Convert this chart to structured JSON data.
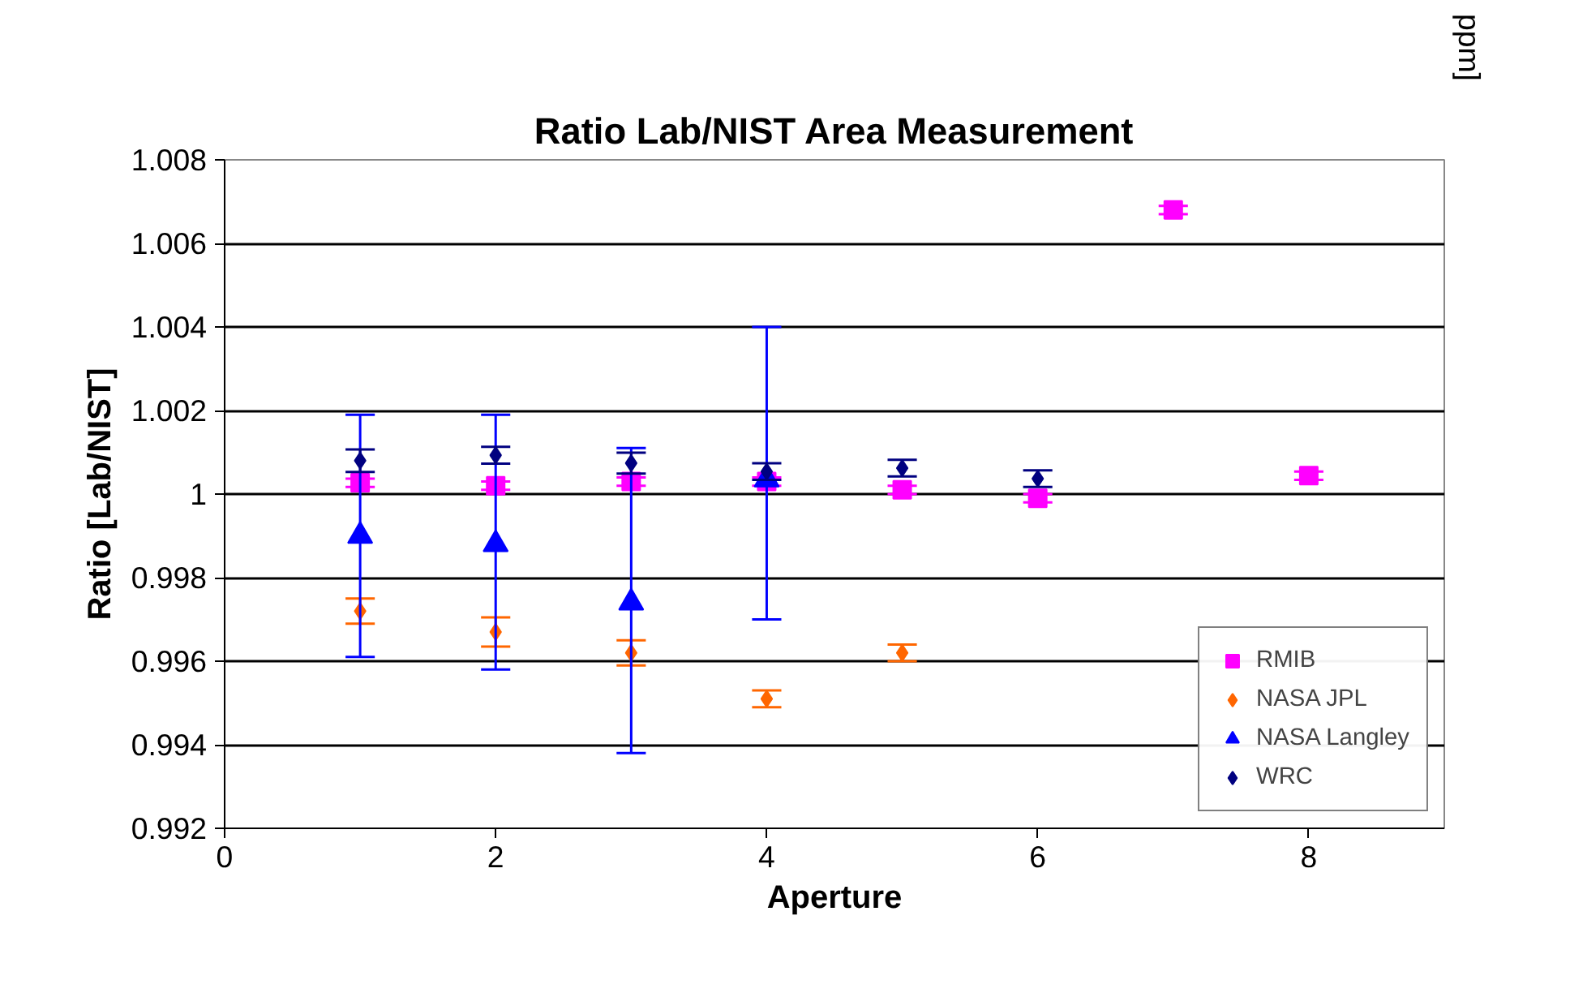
{
  "chart_data": {
    "type": "scatter",
    "title": "Ratio Lab/NIST Area Measurement",
    "xlabel": "Aperture",
    "ylabel": "Ratio [Lab/NIST]",
    "xlim": [
      0,
      9
    ],
    "xticks": [
      0,
      2,
      4,
      6,
      8
    ],
    "ylim": [
      0.992,
      1.008
    ],
    "yticks": [
      0.992,
      0.994,
      0.996,
      0.998,
      1,
      1.002,
      1.004,
      1.006,
      1.008
    ],
    "grid": "y",
    "legend": "bottom right",
    "series": [
      {
        "name": "RMIB",
        "color": "#ff00ff",
        "marker": "square",
        "x": [
          1,
          2,
          3,
          4,
          5,
          6,
          7,
          8
        ],
        "values": [
          1.00027,
          1.0002,
          1.0003,
          1.0003,
          1.0001,
          0.9999,
          1.0068,
          1.00044
        ],
        "errors": [
          0.0001,
          0.0001,
          0.0001,
          0.0001,
          0.0001,
          0.0001,
          0.0001,
          0.0001
        ]
      },
      {
        "name": "NASA JPL",
        "color": "#ff6600",
        "marker": "diamond",
        "x": [
          1,
          2,
          3,
          4,
          5
        ],
        "values": [
          0.9972,
          0.9967,
          0.9962,
          0.9951,
          0.9962
        ],
        "errors": [
          0.0003,
          0.00035,
          0.0003,
          0.0002,
          0.0002
        ]
      },
      {
        "name": "NASA Langley",
        "color": "#0000ff",
        "marker": "triangle",
        "x": [
          1,
          2,
          3,
          4
        ],
        "values": [
          0.999,
          0.9988,
          0.9974,
          1.00035
        ],
        "errors": [
          [
            0.9961,
            1.0019
          ],
          [
            0.9958,
            1.0019
          ],
          [
            0.9938,
            1.0011
          ],
          [
            0.997,
            1.004
          ]
        ]
      },
      {
        "name": "WRC",
        "color": "#000080",
        "marker": "diamond",
        "x": [
          1,
          2,
          3,
          4,
          5,
          6
        ],
        "values": [
          1.0008,
          1.00093,
          1.00074,
          1.00054,
          1.00062,
          1.00037
        ],
        "errors": [
          0.00027,
          0.0002,
          0.00025,
          0.0002,
          0.0002,
          0.0002
        ]
      }
    ],
    "annotations": [
      "ppm]"
    ]
  }
}
